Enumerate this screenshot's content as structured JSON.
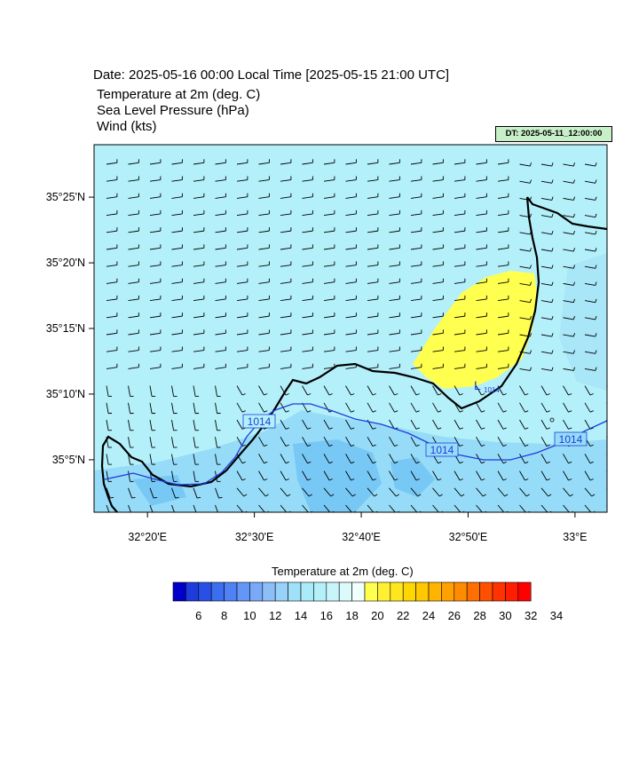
{
  "header": {
    "date_line": "Date: 2025-05-16  00:00 Local Time [2025-05-15  21:00 UTC]",
    "fields": [
      "Temperature at 2m   (deg. C)",
      "Sea Level Pressure   (hPa)",
      "Wind   (kts)"
    ],
    "dt_badge": "DT: 2025-05-11_12:00:00"
  },
  "map": {
    "lon_range": [
      32.25,
      33.05
    ],
    "lat_range": [
      35.0167,
      35.4833
    ],
    "lat_ticks": [
      {
        "value": 35.4167,
        "label": "35°25'N"
      },
      {
        "value": 35.3333,
        "label": "35°20'N"
      },
      {
        "value": 35.25,
        "label": "35°15'N"
      },
      {
        "value": 35.1667,
        "label": "35°10'N"
      },
      {
        "value": 35.0833,
        "label": "35°5'N"
      }
    ],
    "lon_ticks": [
      {
        "value": 32.3333,
        "label": "32°20'E"
      },
      {
        "value": 32.5,
        "label": "32°30'E"
      },
      {
        "value": 32.6667,
        "label": "32°40'E"
      },
      {
        "value": 32.8333,
        "label": "32°50'E"
      },
      {
        "value": 33.0,
        "label": "33°E"
      }
    ],
    "low_label": "L",
    "low_value": "1014",
    "isobar_labels": [
      "1014",
      "1014",
      "1014"
    ],
    "colors": {
      "sea": "#b4f0fa",
      "land_cool": "#96dcf8",
      "land_cold": "#78c8f5",
      "warm": "#ffff50",
      "coast": "#000000",
      "isobar": "#1e3cdc"
    }
  },
  "colorbar": {
    "title": "Temperature at 2m  (deg. C)",
    "labels": [
      "6",
      "8",
      "10",
      "12",
      "14",
      "16",
      "18",
      "20",
      "22",
      "24",
      "26",
      "28",
      "30",
      "32",
      "34"
    ],
    "colors": [
      "#0000c8",
      "#1e3cdc",
      "#2850e6",
      "#3c6ef0",
      "#5082f5",
      "#6496f8",
      "#78aaf8",
      "#8cbef8",
      "#96d2fa",
      "#a0e1fa",
      "#aaebfa",
      "#b4f0fa",
      "#c8f5fa",
      "#dcfafa",
      "#f0ffff",
      "#ffff50",
      "#fff032",
      "#ffe61e",
      "#ffd700",
      "#ffc800",
      "#ffb400",
      "#ffa000",
      "#ff8c00",
      "#ff6e00",
      "#ff5000",
      "#ff3200",
      "#ff1e00",
      "#ff0000"
    ]
  }
}
